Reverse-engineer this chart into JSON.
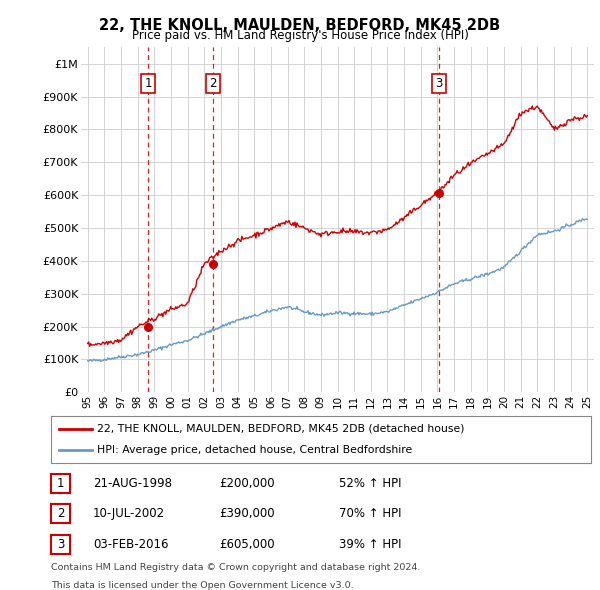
{
  "title": "22, THE KNOLL, MAULDEN, BEDFORD, MK45 2DB",
  "subtitle": "Price paid vs. HM Land Registry's House Price Index (HPI)",
  "y_ticks": [
    0,
    100000,
    200000,
    300000,
    400000,
    500000,
    600000,
    700000,
    800000,
    900000,
    1000000
  ],
  "y_tick_labels": [
    "£0",
    "£100K",
    "£200K",
    "£300K",
    "£400K",
    "£500K",
    "£600K",
    "£700K",
    "£800K",
    "£900K",
    "£1M"
  ],
  "x_tick_years": [
    1995,
    1996,
    1997,
    1998,
    1999,
    2000,
    2001,
    2002,
    2003,
    2004,
    2005,
    2006,
    2007,
    2008,
    2009,
    2010,
    2011,
    2012,
    2013,
    2014,
    2015,
    2016,
    2017,
    2018,
    2019,
    2020,
    2021,
    2022,
    2023,
    2024,
    2025
  ],
  "sale_markers": [
    {
      "year": 1998.64,
      "price": 200000,
      "label": "1"
    },
    {
      "year": 2002.52,
      "price": 390000,
      "label": "2"
    },
    {
      "year": 2016.09,
      "price": 605000,
      "label": "3"
    }
  ],
  "legend_line1": "22, THE KNOLL, MAULDEN, BEDFORD, MK45 2DB (detached house)",
  "legend_line2": "HPI: Average price, detached house, Central Bedfordshire",
  "table_data": [
    {
      "num": "1",
      "date": "21-AUG-1998",
      "price": "£200,000",
      "change": "52% ↑ HPI"
    },
    {
      "num": "2",
      "date": "10-JUL-2002",
      "price": "£390,000",
      "change": "70% ↑ HPI"
    },
    {
      "num": "3",
      "date": "03-FEB-2016",
      "price": "£605,000",
      "change": "39% ↑ HPI"
    }
  ],
  "footnote1": "Contains HM Land Registry data © Crown copyright and database right 2024.",
  "footnote2": "This data is licensed under the Open Government Licence v3.0.",
  "red_color": "#cc0000",
  "blue_color": "#6699cc",
  "background_color": "#ffffff",
  "grid_color": "#cccccc",
  "hpi_values": [
    95000,
    100000,
    108000,
    115000,
    128000,
    145000,
    158000,
    178000,
    200000,
    220000,
    232000,
    248000,
    260000,
    245000,
    235000,
    242000,
    240000,
    238000,
    245000,
    265000,
    285000,
    305000,
    330000,
    345000,
    360000,
    380000,
    430000,
    480000,
    490000,
    510000,
    530000
  ],
  "prop_values": [
    145000,
    150000,
    160000,
    200000,
    225000,
    252000,
    270000,
    390000,
    430000,
    460000,
    478000,
    498000,
    520000,
    500000,
    480000,
    490000,
    488000,
    485000,
    495000,
    530000,
    570000,
    605000,
    660000,
    695000,
    725000,
    755000,
    850000,
    870000,
    800000,
    830000,
    840000
  ]
}
